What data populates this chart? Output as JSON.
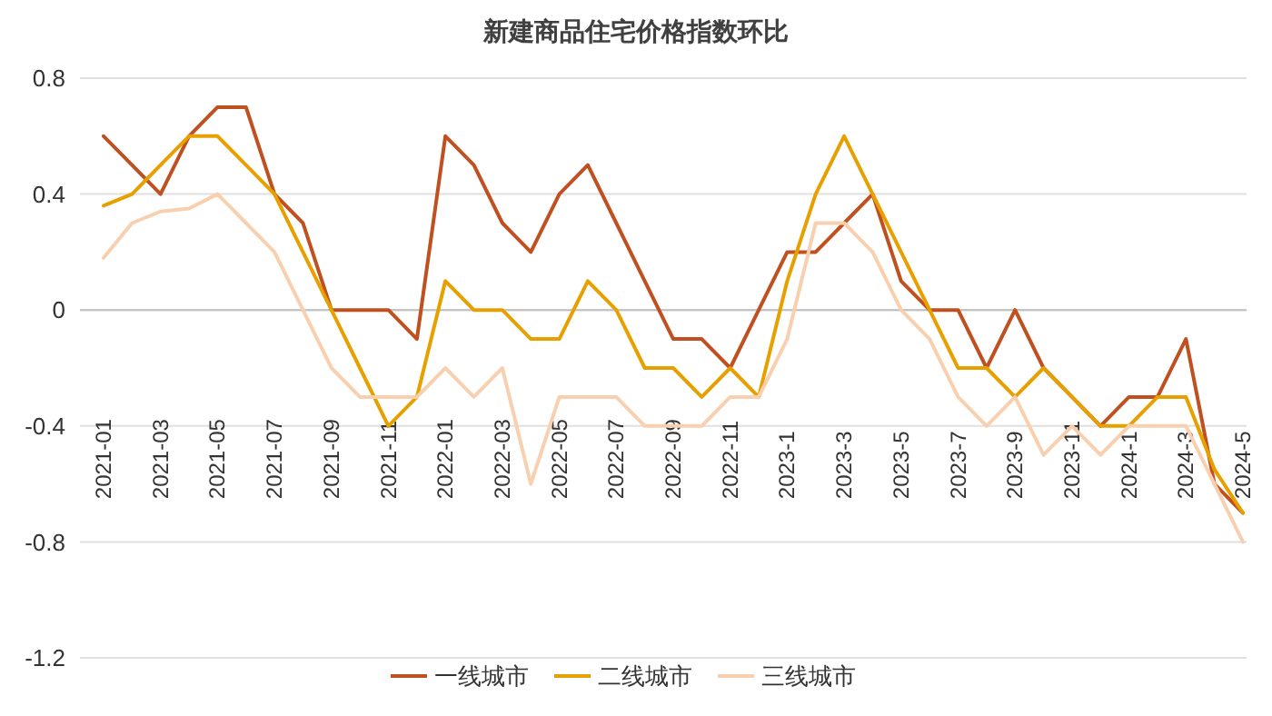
{
  "chart_data": {
    "type": "line",
    "title": "新建商品住宅价格指数环比",
    "categories": [
      "2021-01",
      null,
      "2021-03",
      null,
      "2021-05",
      null,
      "2021-07",
      null,
      "2021-09",
      null,
      "2021-11",
      null,
      "2022-01",
      null,
      "2022-03",
      null,
      "2022-05",
      null,
      "2022-07",
      null,
      "2022-09",
      null,
      "2022-11",
      null,
      "2023-1",
      null,
      "2023-3",
      null,
      "2023-5",
      null,
      "2023-7",
      null,
      "2023-9",
      null,
      "2023-11",
      null,
      "2024-1",
      null,
      "2024-3",
      null,
      "2024-5"
    ],
    "series": [
      {
        "name": "一线城市",
        "color": "#c0501f",
        "values": [
          0.6,
          0.5,
          0.4,
          0.6,
          0.7,
          0.7,
          0.4,
          0.3,
          0,
          0,
          0,
          -0.1,
          0.6,
          0.5,
          0.3,
          0.2,
          0.4,
          0.5,
          0.3,
          0.1,
          -0.1,
          -0.1,
          -0.2,
          0,
          0.2,
          0.2,
          0.3,
          0.4,
          0.1,
          0,
          0,
          -0.2,
          0,
          -0.2,
          -0.3,
          -0.4,
          -0.3,
          -0.3,
          -0.1,
          -0.6,
          -0.7
        ]
      },
      {
        "name": "二线城市",
        "color": "#e8a000",
        "values": [
          0.36,
          0.4,
          0.5,
          0.6,
          0.6,
          0.5,
          0.4,
          0.2,
          0,
          -0.2,
          -0.4,
          -0.3,
          0.1,
          0,
          0,
          -0.1,
          -0.1,
          0.1,
          0,
          -0.2,
          -0.2,
          -0.3,
          -0.2,
          -0.3,
          0.1,
          0.4,
          0.6,
          0.4,
          0.2,
          0,
          -0.2,
          -0.2,
          -0.3,
          -0.2,
          -0.3,
          -0.4,
          -0.4,
          -0.3,
          -0.3,
          -0.55,
          -0.7
        ]
      },
      {
        "name": "三线城市",
        "color": "#f8d0b0",
        "values": [
          0.18,
          0.3,
          0.34,
          0.35,
          0.4,
          0.3,
          0.2,
          0,
          -0.2,
          -0.3,
          -0.3,
          -0.3,
          -0.2,
          -0.3,
          -0.2,
          -0.6,
          -0.3,
          -0.3,
          -0.3,
          -0.4,
          -0.4,
          -0.4,
          -0.3,
          -0.3,
          -0.1,
          0.3,
          0.3,
          0.2,
          0,
          -0.1,
          -0.3,
          -0.4,
          -0.3,
          -0.5,
          -0.4,
          -0.5,
          -0.4,
          -0.4,
          -0.4,
          -0.6,
          -0.8
        ]
      }
    ],
    "ylim": [
      -1.2,
      0.8
    ],
    "yticks": [
      0.8,
      0.4,
      0,
      -0.4,
      -0.8,
      -1.2
    ],
    "grid": "y",
    "legend": "bottom",
    "marker": "none",
    "line_style": "solid"
  }
}
